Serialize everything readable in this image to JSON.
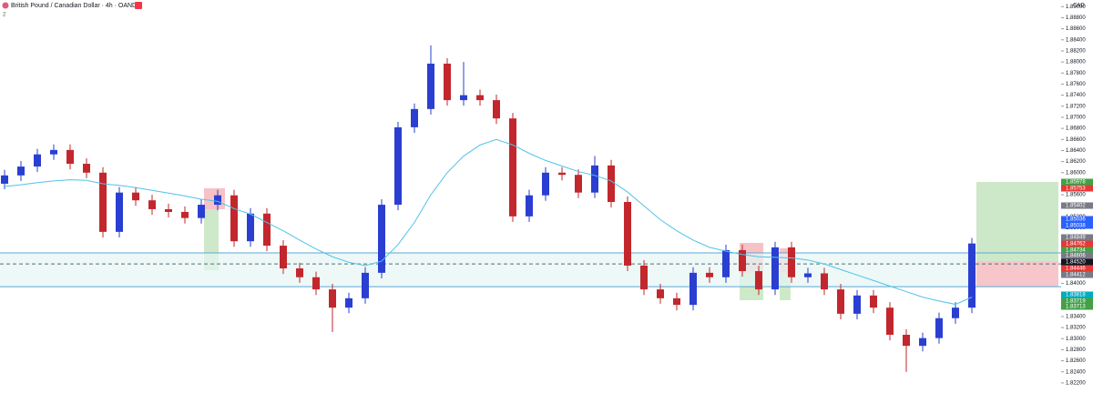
{
  "chart_data": {
    "type": "candlestick",
    "title": "British Pound / Canadian Dollar · 4h · OANDA",
    "currency": "CAD",
    "indicator_count": "2",
    "up_color": "#2a3fd1",
    "down_color": "#c2272d",
    "open": [
      1.858,
      1.8595,
      1.8611,
      1.8633,
      1.8641,
      1.8616,
      1.86,
      1.8493,
      1.8564,
      1.855,
      1.8534,
      1.8529,
      1.8518,
      1.8542,
      1.8559,
      1.8476,
      1.8526,
      1.8468,
      1.8427,
      1.8411,
      1.8389,
      1.8356,
      1.8373,
      1.8419,
      1.8542,
      1.8682,
      1.8715,
      1.8797,
      1.8731,
      1.874,
      1.8731,
      1.8698,
      1.8521,
      1.8559,
      1.86,
      1.8596,
      1.8564,
      1.8613,
      1.8547,
      1.8432,
      1.8389,
      1.8373,
      1.8361,
      1.8419,
      1.8411,
      1.846,
      1.8422,
      1.8389,
      1.8465,
      1.8411,
      1.8418,
      1.8389,
      1.8345,
      1.8378,
      1.8356,
      1.8307,
      1.8287,
      1.8301,
      1.8337,
      1.8356
    ],
    "high": [
      1.8605,
      1.8621,
      1.8643,
      1.8651,
      1.8651,
      1.8626,
      1.861,
      1.8574,
      1.8574,
      1.856,
      1.8544,
      1.8539,
      1.8552,
      1.8569,
      1.8569,
      1.8536,
      1.8536,
      1.8478,
      1.8437,
      1.8421,
      1.8399,
      1.8383,
      1.8429,
      1.8552,
      1.8692,
      1.8725,
      1.883,
      1.8807,
      1.88,
      1.875,
      1.8741,
      1.8708,
      1.8569,
      1.861,
      1.861,
      1.8606,
      1.863,
      1.8623,
      1.8557,
      1.8442,
      1.8399,
      1.8383,
      1.8429,
      1.8429,
      1.847,
      1.847,
      1.8432,
      1.8475,
      1.8475,
      1.8428,
      1.8428,
      1.8399,
      1.8388,
      1.8388,
      1.8366,
      1.8317,
      1.8311,
      1.8347,
      1.8366,
      1.8482
    ],
    "low": [
      1.857,
      1.8585,
      1.8601,
      1.8623,
      1.8606,
      1.859,
      1.8483,
      1.8483,
      1.854,
      1.8524,
      1.8519,
      1.8508,
      1.8508,
      1.8532,
      1.8466,
      1.8466,
      1.8458,
      1.8417,
      1.8401,
      1.8379,
      1.8312,
      1.8346,
      1.8363,
      1.8409,
      1.8532,
      1.8672,
      1.8705,
      1.8721,
      1.8721,
      1.8721,
      1.8688,
      1.8511,
      1.8511,
      1.8549,
      1.8586,
      1.8554,
      1.8554,
      1.8537,
      1.8422,
      1.8379,
      1.8363,
      1.8351,
      1.8351,
      1.8401,
      1.8401,
      1.8412,
      1.8379,
      1.8379,
      1.8401,
      1.8401,
      1.8379,
      1.8335,
      1.8335,
      1.8346,
      1.8297,
      1.824,
      1.8277,
      1.8291,
      1.8327,
      1.8346
    ],
    "close": [
      1.8595,
      1.8611,
      1.8633,
      1.8641,
      1.8616,
      1.86,
      1.8493,
      1.8564,
      1.855,
      1.8534,
      1.8529,
      1.8518,
      1.8542,
      1.8559,
      1.8476,
      1.8526,
      1.8468,
      1.8427,
      1.8411,
      1.8389,
      1.8356,
      1.8373,
      1.8419,
      1.8542,
      1.8682,
      1.8715,
      1.8797,
      1.8731,
      1.874,
      1.8731,
      1.8698,
      1.8521,
      1.8559,
      1.86,
      1.8596,
      1.8564,
      1.8613,
      1.8547,
      1.8432,
      1.8389,
      1.8373,
      1.8361,
      1.8419,
      1.8411,
      1.846,
      1.8422,
      1.8389,
      1.8465,
      1.8411,
      1.8418,
      1.8389,
      1.8345,
      1.8378,
      1.8356,
      1.8307,
      1.8287,
      1.8301,
      1.8337,
      1.8356,
      1.8472
    ],
    "ma": {
      "color": "#4fc3e8",
      "values": [
        1.8575,
        1.8578,
        1.8582,
        1.8585,
        1.8587,
        1.8586,
        1.858,
        1.8577,
        1.8573,
        1.8568,
        1.8563,
        1.8558,
        1.8552,
        1.8548,
        1.8535,
        1.8525,
        1.851,
        1.8495,
        1.8478,
        1.8462,
        1.8448,
        1.8438,
        1.8432,
        1.844,
        1.847,
        1.851,
        1.856,
        1.86,
        1.863,
        1.865,
        1.866,
        1.865,
        1.8635,
        1.8622,
        1.8612,
        1.8602,
        1.8595,
        1.8585,
        1.8565,
        1.854,
        1.8515,
        1.8495,
        1.8478,
        1.8465,
        1.8458,
        1.8452,
        1.8448,
        1.8447,
        1.8446,
        1.8442,
        1.8435,
        1.8425,
        1.8415,
        1.8405,
        1.8395,
        1.8385,
        1.8375,
        1.8368,
        1.8362,
        1.8375
      ]
    },
    "levels": [
      {
        "value": 1.8455,
        "style": "solid",
        "color": "#5aa9d6"
      },
      {
        "value": 1.8435,
        "style": "dashed",
        "color": "#546e7a"
      },
      {
        "value": 1.8394,
        "style": "solid",
        "color": "#5aa9d6"
      }
    ],
    "ylim": [
      1.821,
      1.8912
    ],
    "yticks": [
      {
        "value": 1.822,
        "label": "1.82200"
      },
      {
        "value": 1.824,
        "label": "1.82400"
      },
      {
        "value": 1.826,
        "label": "1.82600"
      },
      {
        "value": 1.828,
        "label": "1.82800"
      },
      {
        "value": 1.83,
        "label": "1.83000"
      },
      {
        "value": 1.832,
        "label": "1.83200"
      },
      {
        "value": 1.834,
        "label": "1.83400"
      },
      {
        "value": 1.836,
        "label": "1.83600"
      },
      {
        "value": 1.838,
        "label": "1.83800"
      },
      {
        "value": 1.84,
        "label": "1.84000"
      },
      {
        "value": 1.842,
        "label": "1.84200"
      },
      {
        "value": 1.844,
        "label": "1.84400"
      },
      {
        "value": 1.846,
        "label": "1.84600"
      },
      {
        "value": 1.848,
        "label": "1.84800"
      },
      {
        "value": 1.85,
        "label": "1.85000"
      },
      {
        "value": 1.852,
        "label": "1.85200"
      },
      {
        "value": 1.854,
        "label": "1.85400"
      },
      {
        "value": 1.856,
        "label": "1.85600"
      },
      {
        "value": 1.858,
        "label": "1.85800"
      },
      {
        "value": 1.86,
        "label": "1.86000"
      },
      {
        "value": 1.862,
        "label": "1.86200"
      },
      {
        "value": 1.864,
        "label": "1.86400"
      },
      {
        "value": 1.866,
        "label": "1.86600"
      },
      {
        "value": 1.868,
        "label": "1.86800"
      },
      {
        "value": 1.87,
        "label": "1.87000"
      },
      {
        "value": 1.872,
        "label": "1.87200"
      },
      {
        "value": 1.874,
        "label": "1.87400"
      },
      {
        "value": 1.876,
        "label": "1.87600"
      },
      {
        "value": 1.878,
        "label": "1.87800"
      },
      {
        "value": 1.88,
        "label": "1.88000"
      },
      {
        "value": 1.882,
        "label": "1.88200"
      },
      {
        "value": 1.884,
        "label": "1.88400"
      },
      {
        "value": 1.886,
        "label": "1.88600"
      },
      {
        "value": 1.888,
        "label": "1.88800"
      },
      {
        "value": 1.89,
        "label": "1.89000"
      }
    ],
    "price_labels": [
      {
        "text": "1.85978",
        "color": "#43a047"
      },
      {
        "text": "1.85753",
        "color": "#e53935"
      },
      {
        "text": "1.85402",
        "color": "#787b86"
      },
      {
        "text": "1.85036",
        "color": "#2962ff"
      },
      {
        "text": "1.85038",
        "color": "#2962ff"
      },
      {
        "text": "1.84849",
        "color": "#787b86"
      },
      {
        "text": "1.84762",
        "color": "#e53935"
      },
      {
        "text": "1.84734",
        "color": "#43a047"
      },
      {
        "text": "1.84606",
        "color": "#787b86"
      },
      {
        "text": "1.84520",
        "color": "#131722"
      },
      {
        "text": "1.84446",
        "color": "#e53935"
      },
      {
        "text": "1.84412",
        "color": "#787b86"
      },
      {
        "text": "1.83818",
        "color": "#00acc1"
      },
      {
        "text": "1.83719",
        "color": "#43a047"
      },
      {
        "text": "1.83713",
        "color": "#43a047"
      }
    ]
  }
}
